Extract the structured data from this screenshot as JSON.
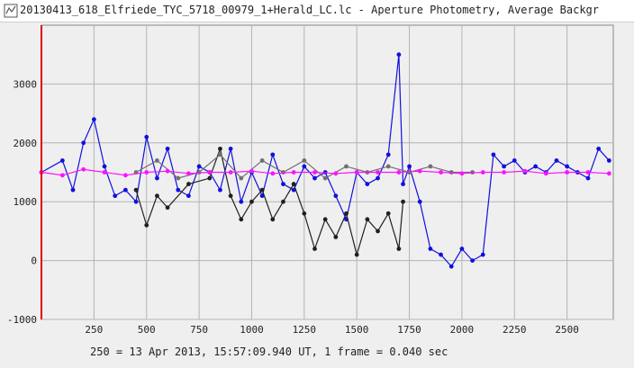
{
  "window": {
    "title": "20130413_618_Elfriede_TYC_5718_00979_1+Herald_LC.lc - Aperture Photometry, Average Backgr",
    "icon": "lightcurve-app-icon"
  },
  "status_line": "250 = 13 Apr 2013, 15:57:09.940 UT, 1 frame = 0.040 sec",
  "colors": {
    "background": "#efefef",
    "grid": "#b4b4b4",
    "marker_line": "#e00000",
    "series_blue": "#1010e0",
    "series_black": "#202020",
    "series_gray": "#707070",
    "series_magenta": "#ff10ff"
  },
  "chart_data": {
    "type": "line",
    "title": "",
    "xlabel": "",
    "ylabel": "",
    "xlim": [
      0,
      2720
    ],
    "ylim": [
      -1000,
      4000
    ],
    "x_ticks": [
      250,
      500,
      750,
      1000,
      1250,
      1500,
      1750,
      2000,
      2250,
      2500
    ],
    "y_ticks": [
      -1000,
      0,
      1000,
      2000,
      3000
    ],
    "grid": true,
    "marker_frame": 0,
    "series": [
      {
        "color": "#1010e0",
        "points": [
          [
            0,
            1500
          ],
          [
            100,
            1700
          ],
          [
            150,
            1200
          ],
          [
            200,
            2000
          ],
          [
            250,
            2400
          ],
          [
            300,
            1600
          ],
          [
            350,
            1100
          ],
          [
            400,
            1200
          ],
          [
            450,
            1000
          ],
          [
            500,
            2100
          ],
          [
            550,
            1400
          ],
          [
            600,
            1900
          ],
          [
            650,
            1200
          ],
          [
            700,
            1100
          ],
          [
            750,
            1600
          ],
          [
            800,
            1500
          ],
          [
            850,
            1200
          ],
          [
            900,
            1900
          ],
          [
            950,
            1000
          ],
          [
            1000,
            1500
          ],
          [
            1050,
            1100
          ],
          [
            1100,
            1800
          ],
          [
            1150,
            1300
          ],
          [
            1200,
            1200
          ],
          [
            1250,
            1600
          ],
          [
            1300,
            1400
          ],
          [
            1350,
            1500
          ],
          [
            1400,
            1100
          ],
          [
            1450,
            700
          ],
          [
            1500,
            1500
          ],
          [
            1550,
            1300
          ],
          [
            1600,
            1400
          ],
          [
            1650,
            1800
          ],
          [
            1700,
            3500
          ],
          [
            1720,
            1300
          ],
          [
            1750,
            1600
          ],
          [
            1800,
            1000
          ],
          [
            1850,
            200
          ],
          [
            1900,
            100
          ],
          [
            1950,
            -100
          ],
          [
            2000,
            200
          ],
          [
            2050,
            0
          ],
          [
            2100,
            100
          ],
          [
            2150,
            1800
          ],
          [
            2200,
            1600
          ],
          [
            2250,
            1700
          ],
          [
            2300,
            1500
          ],
          [
            2350,
            1600
          ],
          [
            2400,
            1500
          ],
          [
            2450,
            1700
          ],
          [
            2500,
            1600
          ],
          [
            2550,
            1500
          ],
          [
            2600,
            1400
          ],
          [
            2650,
            1900
          ],
          [
            2700,
            1700
          ]
        ]
      },
      {
        "color": "#202020",
        "points": [
          [
            450,
            1200
          ],
          [
            500,
            600
          ],
          [
            550,
            1100
          ],
          [
            600,
            900
          ],
          [
            700,
            1300
          ],
          [
            800,
            1400
          ],
          [
            850,
            1900
          ],
          [
            900,
            1100
          ],
          [
            950,
            700
          ],
          [
            1000,
            1000
          ],
          [
            1050,
            1200
          ],
          [
            1100,
            700
          ],
          [
            1150,
            1000
          ],
          [
            1200,
            1300
          ],
          [
            1250,
            800
          ],
          [
            1300,
            200
          ],
          [
            1350,
            700
          ],
          [
            1400,
            400
          ],
          [
            1450,
            800
          ],
          [
            1500,
            100
          ],
          [
            1550,
            700
          ],
          [
            1600,
            500
          ],
          [
            1650,
            800
          ],
          [
            1700,
            200
          ],
          [
            1720,
            1000
          ]
        ]
      },
      {
        "color": "#707070",
        "points": [
          [
            450,
            1500
          ],
          [
            550,
            1700
          ],
          [
            650,
            1400
          ],
          [
            750,
            1500
          ],
          [
            850,
            1800
          ],
          [
            950,
            1400
          ],
          [
            1050,
            1700
          ],
          [
            1150,
            1500
          ],
          [
            1250,
            1700
          ],
          [
            1350,
            1400
          ],
          [
            1450,
            1600
          ],
          [
            1550,
            1500
          ],
          [
            1650,
            1600
          ],
          [
            1750,
            1500
          ],
          [
            1850,
            1600
          ],
          [
            1950,
            1500
          ],
          [
            2050,
            1500
          ]
        ]
      },
      {
        "color": "#ff10ff",
        "points": [
          [
            0,
            1500
          ],
          [
            100,
            1450
          ],
          [
            200,
            1550
          ],
          [
            300,
            1500
          ],
          [
            400,
            1450
          ],
          [
            500,
            1500
          ],
          [
            600,
            1520
          ],
          [
            700,
            1480
          ],
          [
            800,
            1500
          ],
          [
            900,
            1500
          ],
          [
            1000,
            1520
          ],
          [
            1100,
            1480
          ],
          [
            1200,
            1500
          ],
          [
            1300,
            1500
          ],
          [
            1400,
            1480
          ],
          [
            1500,
            1500
          ],
          [
            1600,
            1500
          ],
          [
            1700,
            1500
          ],
          [
            1800,
            1520
          ],
          [
            1900,
            1500
          ],
          [
            2000,
            1480
          ],
          [
            2100,
            1500
          ],
          [
            2200,
            1500
          ],
          [
            2300,
            1520
          ],
          [
            2400,
            1480
          ],
          [
            2500,
            1500
          ],
          [
            2600,
            1500
          ],
          [
            2700,
            1480
          ]
        ]
      }
    ]
  }
}
